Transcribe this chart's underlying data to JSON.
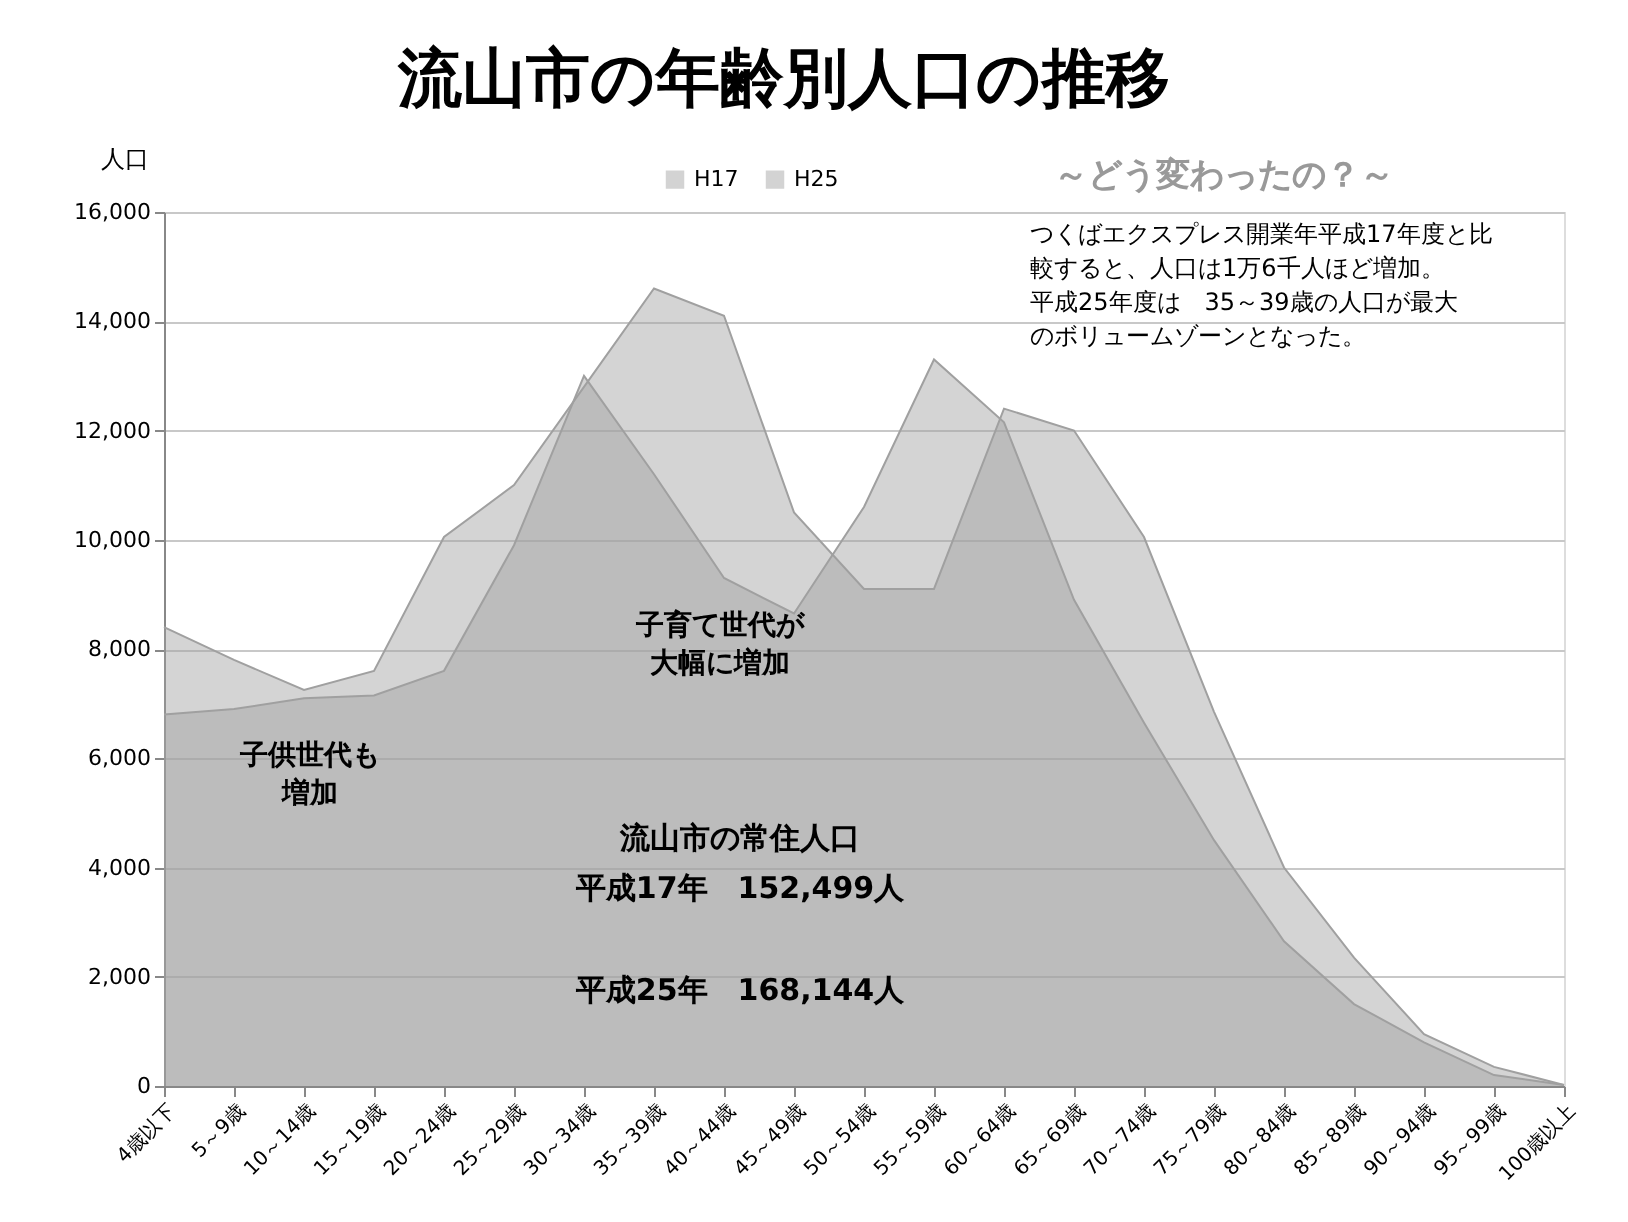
{
  "chart_data": {
    "type": "area",
    "title": "流山市の年齢別人口の推移",
    "subtitle": "～どう変わったの？～",
    "ylabel": "人口",
    "categories": [
      "4歳以下",
      "5～9歳",
      "10～14歳",
      "15～19歳",
      "20～24歳",
      "25～29歳",
      "30～34歳",
      "35～39歳",
      "40～44歳",
      "45～49歳",
      "50～54歳",
      "55～59歳",
      "60～64歳",
      "65～69歳",
      "70～74歳",
      "75～79歳",
      "80～84歳",
      "85～89歳",
      "90～94歳",
      "95～99歳",
      "100歳以上"
    ],
    "series": [
      {
        "name": "H17",
        "color": "#a0a0a0",
        "values": [
          6800,
          6900,
          7100,
          7150,
          7600,
          9900,
          13000,
          11200,
          9300,
          8650,
          10600,
          13300,
          12150,
          8900,
          6650,
          4500,
          2650,
          1500,
          800,
          200,
          20
        ]
      },
      {
        "name": "H25",
        "color": "#a0a0a0",
        "values": [
          8400,
          7800,
          7250,
          7600,
          10050,
          11000,
          12800,
          14600,
          14100,
          10500,
          9100,
          9100,
          12400,
          12000,
          10050,
          6850,
          4000,
          2350,
          950,
          350,
          20
        ]
      }
    ],
    "ylim": [
      0,
      16000
    ],
    "yticks": [
      {
        "value": 0,
        "label": "0"
      },
      {
        "value": 2000,
        "label": "2,000"
      },
      {
        "value": 4000,
        "label": "4,000"
      },
      {
        "value": 6000,
        "label": "6,000"
      },
      {
        "value": 8000,
        "label": "8,000"
      },
      {
        "value": 10000,
        "label": "10,000"
      },
      {
        "value": 12000,
        "label": "12,000"
      },
      {
        "value": 14000,
        "label": "14,000"
      },
      {
        "value": 16000,
        "label": "16,000"
      }
    ],
    "grid": "y",
    "legend": "top",
    "annotations": [
      "つくばエクスプレス開業年平成17年度と比較すると、人口は1万6千人ほど増加。平成25年度は　35～39歳の人口が最大のボリュームゾーンとなった。",
      "子供世代も増加",
      "子育て世代が大幅に増加",
      "流山市の常住人口",
      "平成17年　152,499人",
      "平成25年　168,144人"
    ]
  }
}
